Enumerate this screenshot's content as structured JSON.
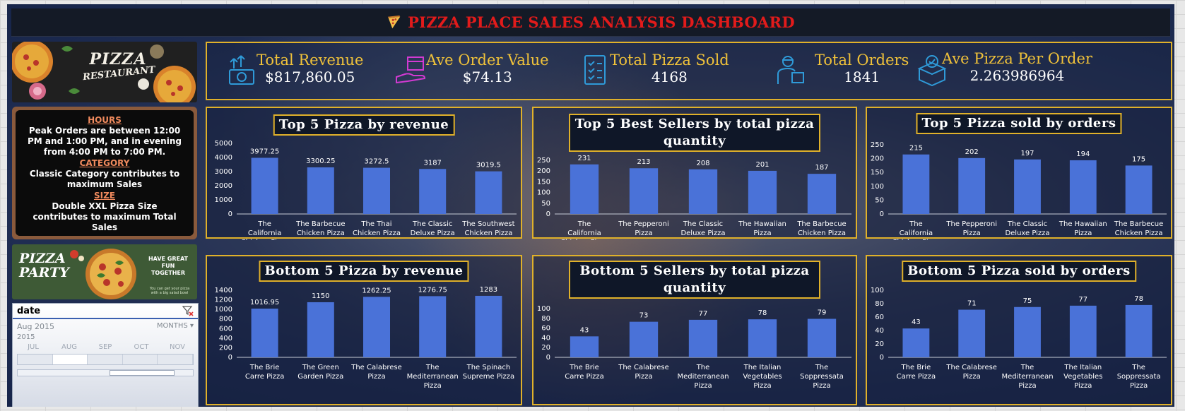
{
  "app": {
    "title": "PIZZA PLACE SALES ANALYSIS DASHBOARD"
  },
  "colors": {
    "accent": "#e0b12a",
    "title_red": "#e21b1b",
    "bar": "#4a72d8",
    "kpi_label": "#f0c23a"
  },
  "promo_top": {
    "line1": "PIZZA",
    "line2": "RESTAURANT"
  },
  "insights": {
    "hours_heading": "HOURS",
    "hours_text": "Peak Orders are between 12:00 PM and 1:00 PM, and in evening from 4:00 PM to 7:00 PM.",
    "category_heading": "CATEGORY",
    "category_text": "Classic Category contributes to maximum Sales",
    "size_heading": "SIZE",
    "size_text": "Double XXL Pizza Size contributes to maximum Total Sales"
  },
  "promo_bottom": {
    "line1": "PIZZA",
    "line2": "PARTY",
    "tagline": "HAVE GREAT FUN TOGETHER",
    "small": "You can get your pizza with a big salad bowl"
  },
  "timeline": {
    "title": "date",
    "range": "Aug 2015",
    "level": "MONTHS",
    "year": "2015",
    "months": [
      "JUL",
      "AUG",
      "SEP",
      "OCT",
      "NOV"
    ],
    "selected_index": 1,
    "clear_icon": "filter-clear-icon"
  },
  "kpis": [
    {
      "label": "Total Revenue",
      "value": "$817,860.05",
      "icon": "revenue-money-icon"
    },
    {
      "label": "Ave Order Value",
      "value": "$74.13",
      "icon": "box-in-hand-icon"
    },
    {
      "label": "Total Pizza Sold",
      "value": "4168",
      "icon": "checklist-clipboard-icon"
    },
    {
      "label": "Total  Orders",
      "value": "1841",
      "icon": "delivery-man-icon"
    },
    {
      "label": "Ave Pizza Per Order",
      "value": "2.263986964",
      "icon": "package-check-icon"
    }
  ],
  "chart_data": [
    {
      "id": "top-revenue",
      "type": "bar",
      "title": "Top 5 Pizza by revenue",
      "categories": [
        "The California Chicken Pizza",
        "The Barbecue Chicken Pizza",
        "The Thai Chicken Pizza",
        "The Classic Deluxe Pizza",
        "The Southwest Chicken Pizza"
      ],
      "values": [
        3977.25,
        3300.25,
        3272.5,
        3187,
        3019.5
      ],
      "labels": [
        "3977.25",
        "3300.25",
        "3272.5",
        "3187",
        "3019.5"
      ],
      "ylim": [
        0,
        5000
      ],
      "yticks": [
        0,
        1000,
        2000,
        3000,
        4000,
        5000
      ]
    },
    {
      "id": "top-quantity",
      "type": "bar",
      "title": "Top 5 Best Sellers by total pizza quantity",
      "categories": [
        "The California Chicken Pizza",
        "The Pepperoni Pizza",
        "The Classic Deluxe Pizza",
        "The Hawaiian Pizza",
        "The Barbecue Chicken Pizza"
      ],
      "values": [
        231,
        213,
        208,
        201,
        187
      ],
      "labels": [
        "231",
        "213",
        "208",
        "201",
        "187"
      ],
      "ylim": [
        0,
        250
      ],
      "yticks": [
        0,
        50,
        100,
        150,
        200,
        250
      ]
    },
    {
      "id": "top-orders",
      "type": "bar",
      "title": "Top 5 Pizza sold by orders",
      "categories": [
        "The California Chicken Pizza",
        "The Pepperoni Pizza",
        "The Classic Deluxe Pizza",
        "The Hawaiian Pizza",
        "The Barbecue Chicken Pizza"
      ],
      "values": [
        215,
        202,
        197,
        194,
        175
      ],
      "labels": [
        "215",
        "202",
        "197",
        "194",
        "175"
      ],
      "ylim": [
        0,
        250
      ],
      "yticks": [
        0,
        50,
        100,
        150,
        200,
        250
      ]
    },
    {
      "id": "bottom-revenue",
      "type": "bar",
      "title": "Bottom 5 Pizza by revenue",
      "categories": [
        "The Brie Carre Pizza",
        "The Green Garden Pizza",
        "The Calabrese Pizza",
        "The Mediterranean Pizza",
        "The Spinach Supreme Pizza"
      ],
      "values": [
        1016.95,
        1150,
        1262.25,
        1276.75,
        1283
      ],
      "labels": [
        "1016.95",
        "1150",
        "1262.25",
        "1276.75",
        "1283"
      ],
      "ylim": [
        0,
        1400
      ],
      "yticks": [
        0,
        200,
        400,
        600,
        800,
        1000,
        1200,
        1400
      ]
    },
    {
      "id": "bottom-quantity",
      "type": "bar",
      "title": "Bottom 5 Sellers by total pizza quantity",
      "categories": [
        "The Brie Carre Pizza",
        "The Calabrese Pizza",
        "The Mediterranean Pizza",
        "The Italian Vegetables Pizza",
        "The Soppressata Pizza"
      ],
      "values": [
        43,
        73,
        77,
        78,
        79
      ],
      "labels": [
        "43",
        "73",
        "77",
        "78",
        "79"
      ],
      "ylim": [
        0,
        100
      ],
      "yticks": [
        0,
        20,
        40,
        60,
        80,
        100
      ]
    },
    {
      "id": "bottom-orders",
      "type": "bar",
      "title": "Bottom 5 Pizza sold by orders",
      "categories": [
        "The Brie Carre Pizza",
        "The Calabrese Pizza",
        "The Mediterranean Pizza",
        "The Italian Vegetables Pizza",
        "The Soppressata Pizza"
      ],
      "values": [
        43,
        71,
        75,
        77,
        78
      ],
      "labels": [
        "43",
        "71",
        "75",
        "77",
        "78"
      ],
      "ylim": [
        0,
        100
      ],
      "yticks": [
        0,
        20,
        40,
        60,
        80,
        100
      ]
    }
  ]
}
